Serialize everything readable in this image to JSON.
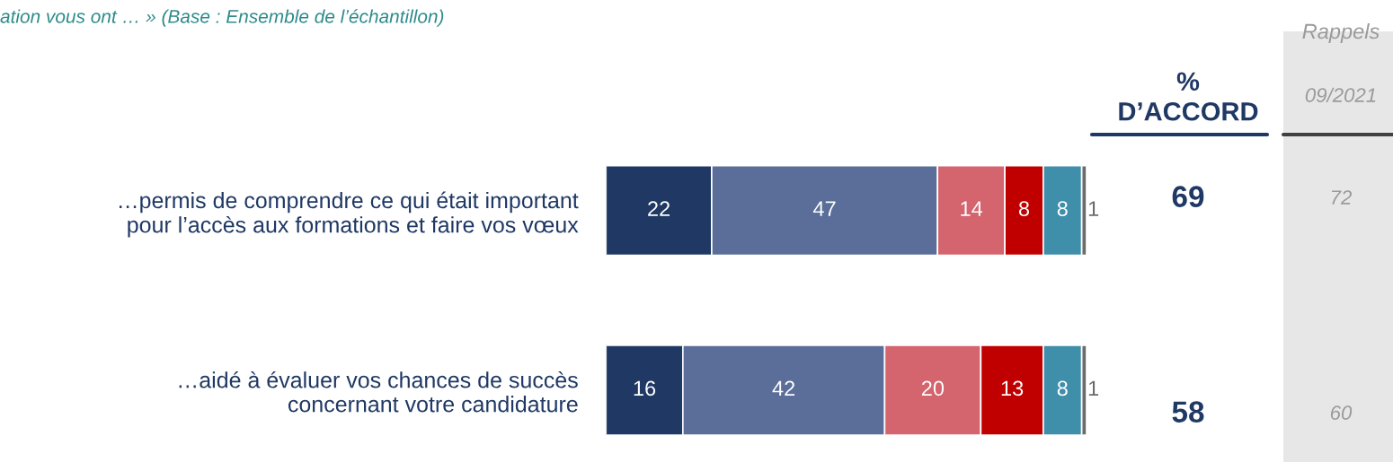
{
  "chart_data": {
    "type": "bar",
    "orientation": "horizontal",
    "stacked": true,
    "data_labels": true,
    "grid": false,
    "legend": false,
    "tick_labels": "y",
    "title": "ation vous ont … » (Base : Ensemble de l’échantillon)",
    "categories": [
      "…permis de comprendre ce qui était important\npour l’accès aux formations et faire vos vœux",
      "…aidé à évaluer vos chances de succès\nconcernant votre candidature"
    ],
    "series": [
      {
        "color": "#1f3864",
        "values": [
          22,
          16
        ]
      },
      {
        "color": "#5a6e99",
        "values": [
          47,
          42
        ]
      },
      {
        "color": "#d4646e",
        "values": [
          14,
          20
        ]
      },
      {
        "color": "#c00000",
        "values": [
          8,
          13
        ]
      },
      {
        "color": "#3f8eaa",
        "values": [
          8,
          8
        ]
      },
      {
        "color": "#6b6b6b",
        "values": [
          1,
          1
        ]
      }
    ],
    "annotations": [
      "%\nD’ACCORD",
      "Rappels",
      "09/2021",
      "69",
      "72",
      "58",
      "60"
    ]
  }
}
